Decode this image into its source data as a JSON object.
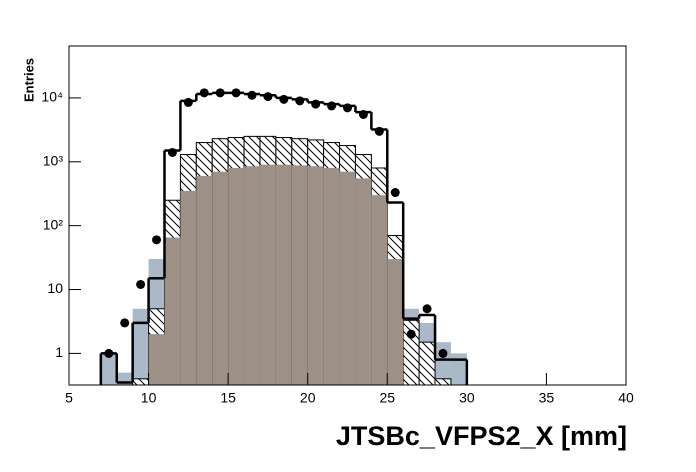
{
  "chart_data": {
    "type": "histogram",
    "xlabel": "JTSBc_VFPS2_X [mm]",
    "ylabel": "Entries",
    "xlim": [
      5,
      40
    ],
    "ylim": [
      0.32,
      65000
    ],
    "log_y": true,
    "xticks": [
      5,
      10,
      15,
      20,
      25,
      30,
      35,
      40
    ],
    "yticks": [
      1,
      10,
      {
        "value": 100,
        "label": "10²"
      },
      {
        "value": 1000,
        "label": "10³"
      },
      {
        "value": 10000,
        "label": "10⁴"
      }
    ],
    "bins": [
      7,
      8,
      9,
      10,
      11,
      12,
      13,
      14,
      15,
      16,
      17,
      18,
      19,
      20,
      21,
      22,
      23,
      24,
      25,
      26,
      27,
      28,
      29,
      30
    ],
    "series": [
      {
        "style": "fill",
        "color": "#a9b9c8",
        "values": [
          1,
          0.5,
          5,
          30,
          null,
          null,
          null,
          null,
          null,
          null,
          null,
          null,
          null,
          null,
          null,
          null,
          null,
          null,
          null,
          5,
          3,
          1.5,
          1
        ]
      },
      {
        "style": "hatch",
        "color": "#000000",
        "values": [
          null,
          null,
          0.4,
          5,
          250,
          1300,
          2000,
          2300,
          2400,
          2500,
          2500,
          2400,
          2300,
          2200,
          2000,
          1800,
          1300,
          800,
          70,
          3.3,
          1.5,
          0.4,
          null
        ]
      },
      {
        "style": "fill",
        "color": "#9c9087",
        "values": [
          null,
          null,
          null,
          2,
          65,
          350,
          600,
          700,
          800,
          850,
          900,
          900,
          880,
          850,
          800,
          700,
          550,
          300,
          30,
          null,
          null,
          null,
          null
        ]
      },
      {
        "style": "outline",
        "color": "#000000",
        "values": [
          1,
          0.35,
          3,
          15,
          1500,
          9000,
          11500,
          12000,
          12000,
          11500,
          11000,
          10000,
          9500,
          8500,
          8000,
          7500,
          6000,
          3200,
          230,
          3.5,
          4,
          0.8,
          0.8
        ]
      }
    ],
    "points": {
      "color": "#000000",
      "x": [
        7.5,
        8.5,
        9.5,
        10.5,
        11.5,
        12.5,
        13.5,
        14.5,
        15.5,
        16.5,
        17.5,
        18.5,
        19.5,
        20.5,
        21.5,
        22.5,
        23.5,
        24.5,
        25.5,
        26.5,
        27.5,
        28.5
      ],
      "y": [
        1,
        3,
        12,
        60,
        1400,
        8500,
        12000,
        12000,
        12000,
        11000,
        10500,
        9500,
        9000,
        8000,
        7500,
        7000,
        5500,
        3000,
        330,
        2,
        5,
        1
      ]
    }
  }
}
